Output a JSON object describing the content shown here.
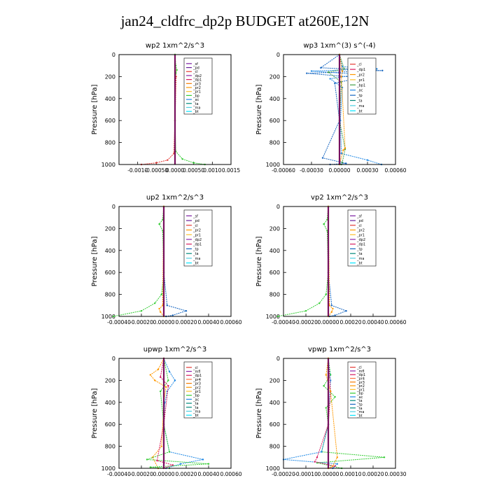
{
  "page_title": "jan24_cldfrc_dp2p  BUDGET at260E,12N",
  "colors": {
    "axis": "#000000",
    "series": {
      "_sf": "#7b1fa2",
      "_pd": "#6a1b9a",
      "_cl": "#e53935",
      "_dp2": "#8e24aa",
      "_dp1": "#d81b60",
      "_pr3": "#f57c00",
      "_pr2": "#ff9800",
      "_pr1": "#fbc02d",
      "_bp": "#33cc33",
      "_ac": "#1e88e5",
      "_ta": "#00897b",
      "_ma": "#4dd0e1",
      "_bt": "#00e5ff",
      "_bp1": "#43a047",
      "_tp": "#1565c0",
      "_mfl": "#8e24aa",
      "_dp4": "#c2185b",
      "_pr4": "#ff7043",
      "_pr3b": "#f57c00"
    },
    "total_line": "#8b0000"
  },
  "chart_data": [
    {
      "type": "line",
      "title": "wp2  1xm^2/s^3",
      "ylabel": "Pressure [hPa]",
      "ylim": [
        0,
        1000
      ],
      "yticks": [
        "0",
        "200",
        "400",
        "600",
        "800",
        "1000"
      ],
      "xlim": [
        -0.0015,
        0.0015
      ],
      "xticks": [
        "-0.0010",
        "-0.00050",
        "0.0000",
        "0.00050",
        "0.0010",
        "0.0015"
      ],
      "xticks_values": [
        -0.001,
        -0.0005,
        0.0,
        0.0005,
        0.001,
        0.0015
      ],
      "legend": [
        "_sf",
        "_pd",
        "_cl",
        "_dp2",
        "_dp1",
        "_pr3",
        "_pr2",
        "_pr1",
        "_bp",
        "_ac",
        "_ta",
        "_ma",
        "_bt"
      ],
      "series": [
        {
          "name": "_cl",
          "pressure": [
            0,
            100,
            200,
            600,
            900,
            960,
            985,
            1000
          ],
          "values": [
            0,
            1e-05,
            3e-05,
            0,
            -3e-05,
            -0.0002,
            -0.0005,
            -0.0009
          ]
        },
        {
          "name": "_bp",
          "pressure": [
            0,
            100,
            140,
            170,
            250,
            600,
            880,
            950,
            985,
            1000
          ],
          "values": [
            0,
            2e-05,
            5e-05,
            2e-05,
            0,
            0,
            2e-05,
            0.0002,
            0.0005,
            0.0008
          ]
        },
        {
          "name": "_dp2",
          "pressure": [
            0,
            500,
            1000
          ],
          "values": [
            0,
            0,
            0
          ]
        }
      ]
    },
    {
      "type": "line",
      "title": "wp3  1xm^(3) s^(-4)",
      "ylabel": "Pressure [hPa]",
      "ylim": [
        0,
        1000
      ],
      "yticks": [
        "0",
        "200",
        "400",
        "600",
        "800",
        "1000"
      ],
      "xlim": [
        -0.0006,
        0.0006
      ],
      "xticks": [
        "-0.00060",
        "-0.00030",
        "0.00000",
        "0.00030",
        "0.00060"
      ],
      "xticks_values": [
        -0.0006,
        -0.0003,
        0.0,
        0.0003,
        0.0006
      ],
      "legend": [
        "_cl",
        "_dp1",
        "_pr2",
        "_pr1",
        "_bp1",
        "_ac",
        "_tp",
        "_ta",
        "_ma",
        "_bt"
      ],
      "series": [
        {
          "name": "_ac",
          "pressure": [
            0,
            110,
            130,
            150,
            180,
            220,
            300,
            600,
            900,
            960,
            1000
          ],
          "values": [
            0,
            3e-05,
            0.0004,
            -0.0003,
            0.0002,
            -0.0001,
            3e-05,
            1e-05,
            2e-05,
            0.0003,
            0.00045
          ]
        },
        {
          "name": "_tp",
          "pressure": [
            0,
            120,
            145,
            170,
            210,
            260,
            600,
            940,
            990,
            1000
          ],
          "values": [
            0,
            -0.0002,
            0.00046,
            -0.00035,
            0.00022,
            -5e-05,
            0,
            -0.00018,
            7e-05,
            -0.0001
          ]
        },
        {
          "name": "_bp1",
          "pressure": [
            0,
            130,
            160,
            250,
            600,
            860,
            980,
            1000
          ],
          "values": [
            0,
            5e-05,
            -0.00012,
            2e-05,
            0,
            6e-05,
            3e-05,
            2e-05
          ]
        },
        {
          "name": "_pr2",
          "pressure": [
            0,
            150,
            200,
            850,
            870,
            1000
          ],
          "values": [
            0,
            3e-05,
            2e-05,
            6e-05,
            4e-05,
            0
          ]
        },
        {
          "name": "_cl",
          "pressure": [
            0,
            500,
            1000
          ],
          "values": [
            0,
            0,
            0
          ]
        }
      ]
    },
    {
      "type": "line",
      "title": "up2  1xm^2/s^3",
      "ylabel": "Pressure [hPa]",
      "ylim": [
        0,
        1000
      ],
      "yticks": [
        "0",
        "200",
        "400",
        "600",
        "800",
        "1000"
      ],
      "xlim": [
        -0.0004,
        0.0006
      ],
      "xticks": [
        "-0.00040",
        "-0.00020",
        "0.00000",
        "0.00020",
        "0.00040",
        "0.00060"
      ],
      "xticks_values": [
        -0.0004,
        -0.0002,
        0.0,
        0.0002,
        0.0004,
        0.0006
      ],
      "legend": [
        "_sf",
        "_pd",
        "_cl",
        "_pr2",
        "_pr1",
        "_dp2",
        "_dp1",
        "_tp",
        "_ta",
        "_ma",
        "_bt"
      ],
      "series": [
        {
          "name": "_bp",
          "pressure": [
            0,
            120,
            160,
            220,
            600,
            800,
            880,
            950,
            1000
          ],
          "values": [
            0,
            -1e-05,
            -4e-05,
            -1e-05,
            0,
            -2e-05,
            -8e-05,
            -0.0002,
            -0.00045
          ]
        },
        {
          "name": "_tp",
          "pressure": [
            0,
            600,
            900,
            950,
            990,
            1000
          ],
          "values": [
            0,
            0,
            3e-05,
            0.0002,
            8e-05,
            2e-05
          ]
        },
        {
          "name": "_pr2",
          "pressure": [
            0,
            900,
            930,
            960,
            1000
          ],
          "values": [
            0,
            -1e-05,
            -4e-05,
            -3e-05,
            0
          ]
        },
        {
          "name": "_cl",
          "pressure": [
            0,
            500,
            1000
          ],
          "values": [
            0,
            0,
            0
          ]
        }
      ]
    },
    {
      "type": "line",
      "title": "vp2  1xm^2/s^3",
      "ylabel": "Pressure [hPa]",
      "ylim": [
        0,
        1000
      ],
      "yticks": [
        "0",
        "200",
        "400",
        "600",
        "800",
        "1000"
      ],
      "xlim": [
        -0.0004,
        0.0006
      ],
      "xticks": [
        "-0.00040",
        "-0.00020",
        "0.00000",
        "0.00020",
        "0.00040",
        "0.00060"
      ],
      "xticks_values": [
        -0.0004,
        -0.0002,
        0.0,
        0.0002,
        0.0004,
        0.0006
      ],
      "legend": [
        "_sf",
        "_pd",
        "_cl",
        "_pr2",
        "_pr1",
        "_dp2",
        "_dp1",
        "_tp",
        "_ta",
        "_ma",
        "_bt"
      ],
      "series": [
        {
          "name": "_bp",
          "pressure": [
            0,
            120,
            160,
            220,
            600,
            800,
            880,
            950,
            1000
          ],
          "values": [
            0,
            -1e-05,
            -4e-05,
            -1e-05,
            0,
            -2e-05,
            -8e-05,
            -0.0002,
            -0.00045
          ]
        },
        {
          "name": "_tp",
          "pressure": [
            0,
            600,
            900,
            950,
            990,
            1000
          ],
          "values": [
            0,
            0,
            3e-05,
            0.00016,
            6e-05,
            1e-05
          ]
        },
        {
          "name": "_pr2",
          "pressure": [
            0,
            900,
            930,
            960,
            1000
          ],
          "values": [
            0,
            1e-05,
            4e-05,
            3e-05,
            0
          ]
        },
        {
          "name": "_cl",
          "pressure": [
            0,
            500,
            1000
          ],
          "values": [
            0,
            0,
            0
          ]
        }
      ]
    },
    {
      "type": "line",
      "title": "upwp  1xm^2/s^3",
      "ylabel": "Pressure [hPa]",
      "ylim": [
        0,
        1000
      ],
      "yticks": [
        "0",
        "200",
        "400",
        "600",
        "800",
        "1000"
      ],
      "xlim": [
        -0.0004,
        0.0006
      ],
      "xticks": [
        "-0.00040",
        "-0.00020",
        "0.00000",
        "0.00020",
        "0.00040",
        "0.00060"
      ],
      "xticks_values": [
        -0.0004,
        -0.0002,
        0.0,
        0.0002,
        0.0004,
        0.0006
      ],
      "legend": [
        "_cl",
        "_mfl",
        "_dp1",
        "_pr4",
        "_pr3",
        "_pr2",
        "_pr1",
        "_bp",
        "_ac",
        "_ta",
        "_ta",
        "_ma",
        "_bt"
      ],
      "series": [
        {
          "name": "_pr2",
          "pressure": [
            0,
            100,
            150,
            200,
            260,
            400,
            800,
            900,
            1000
          ],
          "values": [
            0,
            -5e-05,
            -0.00012,
            -8e-05,
            2e-05,
            0,
            -2e-05,
            -0.0001,
            -5e-05
          ]
        },
        {
          "name": "_ac",
          "pressure": [
            0,
            120,
            200,
            300,
            400,
            600,
            850,
            920,
            960,
            1000
          ],
          "values": [
            0,
            5e-05,
            0.0001,
            3e-05,
            1e-05,
            0,
            5e-05,
            0.00035,
            0.00015,
            2e-05
          ]
        },
        {
          "name": "_bp",
          "pressure": [
            0,
            200,
            300,
            600,
            850,
            920,
            960,
            990,
            1000
          ],
          "values": [
            0,
            4e-05,
            -3e-05,
            0,
            5e-05,
            -0.00015,
            0.0004,
            -0.00012,
            5e-05
          ]
        },
        {
          "name": "_dp1",
          "pressure": [
            0,
            170,
            250,
            600,
            930,
            970,
            1000
          ],
          "values": [
            0,
            -3e-05,
            4e-05,
            0,
            -6e-05,
            8e-05,
            0
          ]
        },
        {
          "name": "_cl",
          "pressure": [
            0,
            500,
            1000
          ],
          "values": [
            0,
            0,
            0
          ]
        }
      ]
    },
    {
      "type": "line",
      "title": "vpwp  1xm^2/s^3",
      "ylabel": "Pressure [hPa]",
      "ylim": [
        0,
        1000
      ],
      "yticks": [
        "0",
        "200",
        "400",
        "600",
        "800",
        "1000"
      ],
      "xlim": [
        -0.0002,
        0.0003
      ],
      "xticks": [
        "-0.00020",
        "-0.00010",
        "0.00000",
        "0.00010",
        "0.00020",
        "0.00030"
      ],
      "xticks_values": [
        -0.0002,
        -0.0001,
        0.0,
        0.0001,
        0.0002,
        0.0003
      ],
      "legend": [
        "_cl",
        "_mfl",
        "_dp1",
        "_pr4",
        "_pr3",
        "_pr2",
        "_pr1",
        "_bp",
        "_ac",
        "_ta",
        "_tp",
        "_ta",
        "_ma",
        "_bt"
      ],
      "series": [
        {
          "name": "_bp",
          "pressure": [
            0,
            150,
            250,
            350,
            450,
            600,
            850,
            900,
            950,
            1000
          ],
          "values": [
            0,
            1e-05,
            -2e-05,
            3e-05,
            -1e-05,
            0,
            -3e-05,
            0.00025,
            -5e-05,
            6e-05
          ]
        },
        {
          "name": "_ac",
          "pressure": [
            0,
            200,
            600,
            850,
            920,
            960,
            1000
          ],
          "values": [
            0,
            1e-05,
            0,
            -3e-05,
            -0.0002,
            4e-05,
            2e-05
          ]
        },
        {
          "name": "_dp1",
          "pressure": [
            0,
            300,
            600,
            900,
            940,
            980,
            1000
          ],
          "values": [
            0,
            1e-05,
            0,
            -5e-05,
            -6e-05,
            3e-05,
            0
          ]
        },
        {
          "name": "_pr2",
          "pressure": [
            0,
            150,
            300,
            900,
            980,
            1000
          ],
          "values": [
            0,
            -1e-05,
            1e-05,
            4e-05,
            2e-05,
            0
          ]
        },
        {
          "name": "_cl",
          "pressure": [
            0,
            500,
            1000
          ],
          "values": [
            0,
            0,
            0
          ]
        }
      ]
    }
  ]
}
